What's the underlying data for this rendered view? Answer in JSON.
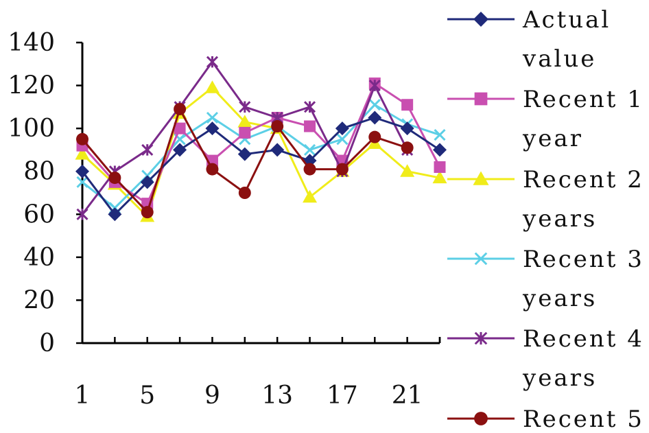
{
  "chart_data": {
    "type": "line",
    "title": "",
    "xlabel": "",
    "ylabel": "",
    "ylim": [
      0,
      140
    ],
    "y_ticks": [
      "0",
      "20",
      "40",
      "60",
      "80",
      "100",
      "120",
      "140"
    ],
    "x_tick_labels": [
      "1",
      "5",
      "9",
      "13",
      "17",
      "21"
    ],
    "x_tick_values": [
      1,
      5,
      9,
      13,
      17,
      21
    ],
    "x": [
      1,
      3,
      5,
      7,
      9,
      11,
      13,
      15,
      17,
      19,
      21,
      23
    ],
    "legend_position": "right",
    "grid": false,
    "series": [
      {
        "name_lines": [
          "Actual",
          "value"
        ],
        "color": "#1f2a7a",
        "marker": "diamond",
        "values": [
          80,
          60,
          75,
          90,
          100,
          88,
          90,
          85,
          100,
          105,
          100,
          90
        ]
      },
      {
        "name_lines": [
          "Recent 1",
          "year"
        ],
        "color": "#c94fb0",
        "marker": "square",
        "values": [
          92,
          75,
          65,
          100,
          85,
          98,
          105,
          101,
          85,
          121,
          111,
          82
        ]
      },
      {
        "name_lines": [
          "Recent 2",
          "years"
        ],
        "color": "#f0ec1a",
        "marker": "triangle",
        "values": [
          88,
          74,
          59,
          107,
          119,
          103,
          100,
          68,
          80,
          93,
          80,
          77
        ]
      },
      {
        "name_lines": [
          "Recent 3",
          "years"
        ],
        "color": "#5ccfe6",
        "marker": "x",
        "values": [
          75,
          63,
          78,
          95,
          105,
          95,
          101,
          90,
          95,
          111,
          102,
          97
        ]
      },
      {
        "name_lines": [
          "Recent 4",
          "years"
        ],
        "color": "#7a2a8a",
        "marker": "star",
        "values": [
          60,
          80,
          90,
          110,
          131,
          110,
          105,
          110,
          80,
          120,
          90,
          null
        ]
      },
      {
        "name_lines": [
          "Recent 5"
        ],
        "color": "#8b1010",
        "marker": "circle",
        "values": [
          95,
          77,
          61,
          109,
          81,
          70,
          101,
          81,
          81,
          96,
          91,
          null
        ]
      }
    ]
  }
}
